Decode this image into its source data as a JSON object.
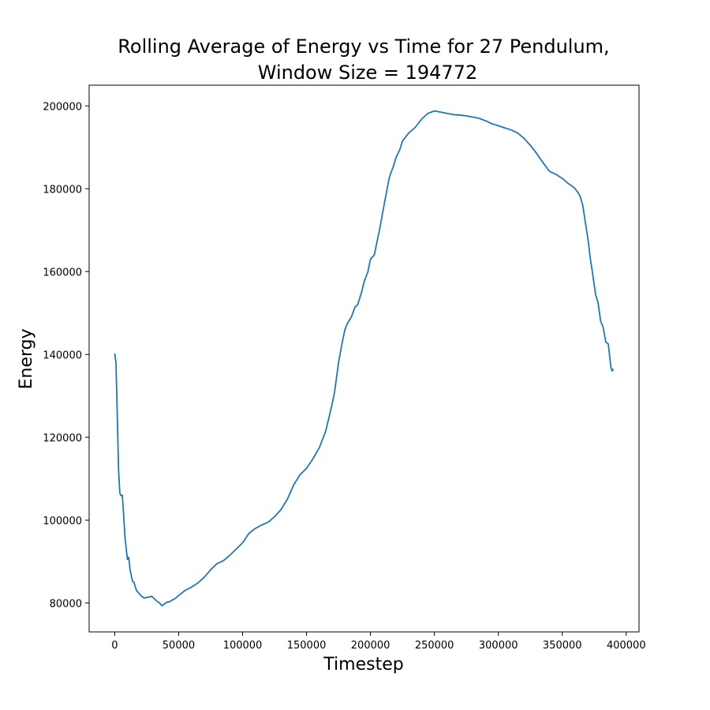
{
  "chart_data": {
    "type": "line",
    "title": "Rolling Average of Energy vs Time for 27 Pendulum,",
    "subtitle": "Window Size = 194772",
    "xlabel": "Timestep",
    "ylabel": "Energy",
    "xlim": [
      -20000,
      410000
    ],
    "ylim": [
      73000,
      205000
    ],
    "xticks": [
      0,
      50000,
      100000,
      150000,
      200000,
      250000,
      300000,
      350000,
      400000
    ],
    "yticks": [
      80000,
      100000,
      120000,
      140000,
      160000,
      180000,
      200000
    ],
    "grid": false,
    "legend": false,
    "series": [
      {
        "color": "#1f77b4",
        "x": [
          0,
          1000,
          2000,
          3000,
          4000,
          5000,
          6000,
          7000,
          8000,
          9000,
          10000,
          11000,
          12000,
          13000,
          14000,
          15000,
          17000,
          19000,
          21000,
          23000,
          25000,
          27000,
          29000,
          31000,
          33000,
          35000,
          37000,
          39000,
          41000,
          43000,
          45000,
          47000,
          50000,
          55000,
          60000,
          65000,
          70000,
          75000,
          80000,
          85000,
          90000,
          95000,
          100000,
          105000,
          110000,
          115000,
          120000,
          125000,
          130000,
          135000,
          140000,
          145000,
          150000,
          155000,
          160000,
          165000,
          170000,
          172000,
          175000,
          178000,
          180000,
          182000,
          185000,
          188000,
          190000,
          193000,
          195000,
          198000,
          200000,
          203000,
          205000,
          207000,
          210000,
          213000,
          215000,
          218000,
          220000,
          223000,
          225000,
          230000,
          235000,
          240000,
          245000,
          250000,
          255000,
          260000,
          265000,
          270000,
          275000,
          280000,
          285000,
          290000,
          295000,
          300000,
          305000,
          310000,
          315000,
          320000,
          325000,
          330000,
          335000,
          340000,
          345000,
          350000,
          355000,
          358000,
          360000,
          362000,
          364000,
          366000,
          368000,
          370000,
          372000,
          374000,
          376000,
          378000,
          380000,
          382000,
          384000,
          386000,
          388000,
          389000,
          390000
        ],
        "y": [
          140200,
          138000,
          125000,
          112000,
          106500,
          105900,
          106000,
          101000,
          96000,
          93000,
          90500,
          91000,
          88000,
          86500,
          85200,
          85000,
          83000,
          82300,
          81600,
          81200,
          81300,
          81400,
          81600,
          81000,
          80400,
          80000,
          79300,
          79800,
          80200,
          80300,
          80700,
          81000,
          81800,
          83000,
          83800,
          84800,
          86200,
          88000,
          89500,
          90200,
          91500,
          93000,
          94500,
          96800,
          98000,
          98800,
          99500,
          100800,
          102500,
          105000,
          108500,
          111000,
          112500,
          114800,
          117500,
          121500,
          128000,
          131000,
          138000,
          143000,
          146000,
          147500,
          149000,
          151500,
          152000,
          155000,
          157500,
          160000,
          163000,
          164000,
          167000,
          170000,
          175000,
          180000,
          183000,
          185500,
          187500,
          189500,
          191500,
          193500,
          194800,
          196800,
          198200,
          198800,
          198500,
          198200,
          197900,
          197800,
          197600,
          197300,
          197000,
          196400,
          195700,
          195200,
          194700,
          194200,
          193500,
          192200,
          190500,
          188500,
          186300,
          184200,
          183500,
          182500,
          181200,
          180600,
          180000,
          179200,
          178200,
          176000,
          172000,
          168000,
          163000,
          159000,
          154500,
          152500,
          148000,
          146500,
          143000,
          142500,
          137000,
          136000,
          136500
        ]
      }
    ]
  }
}
